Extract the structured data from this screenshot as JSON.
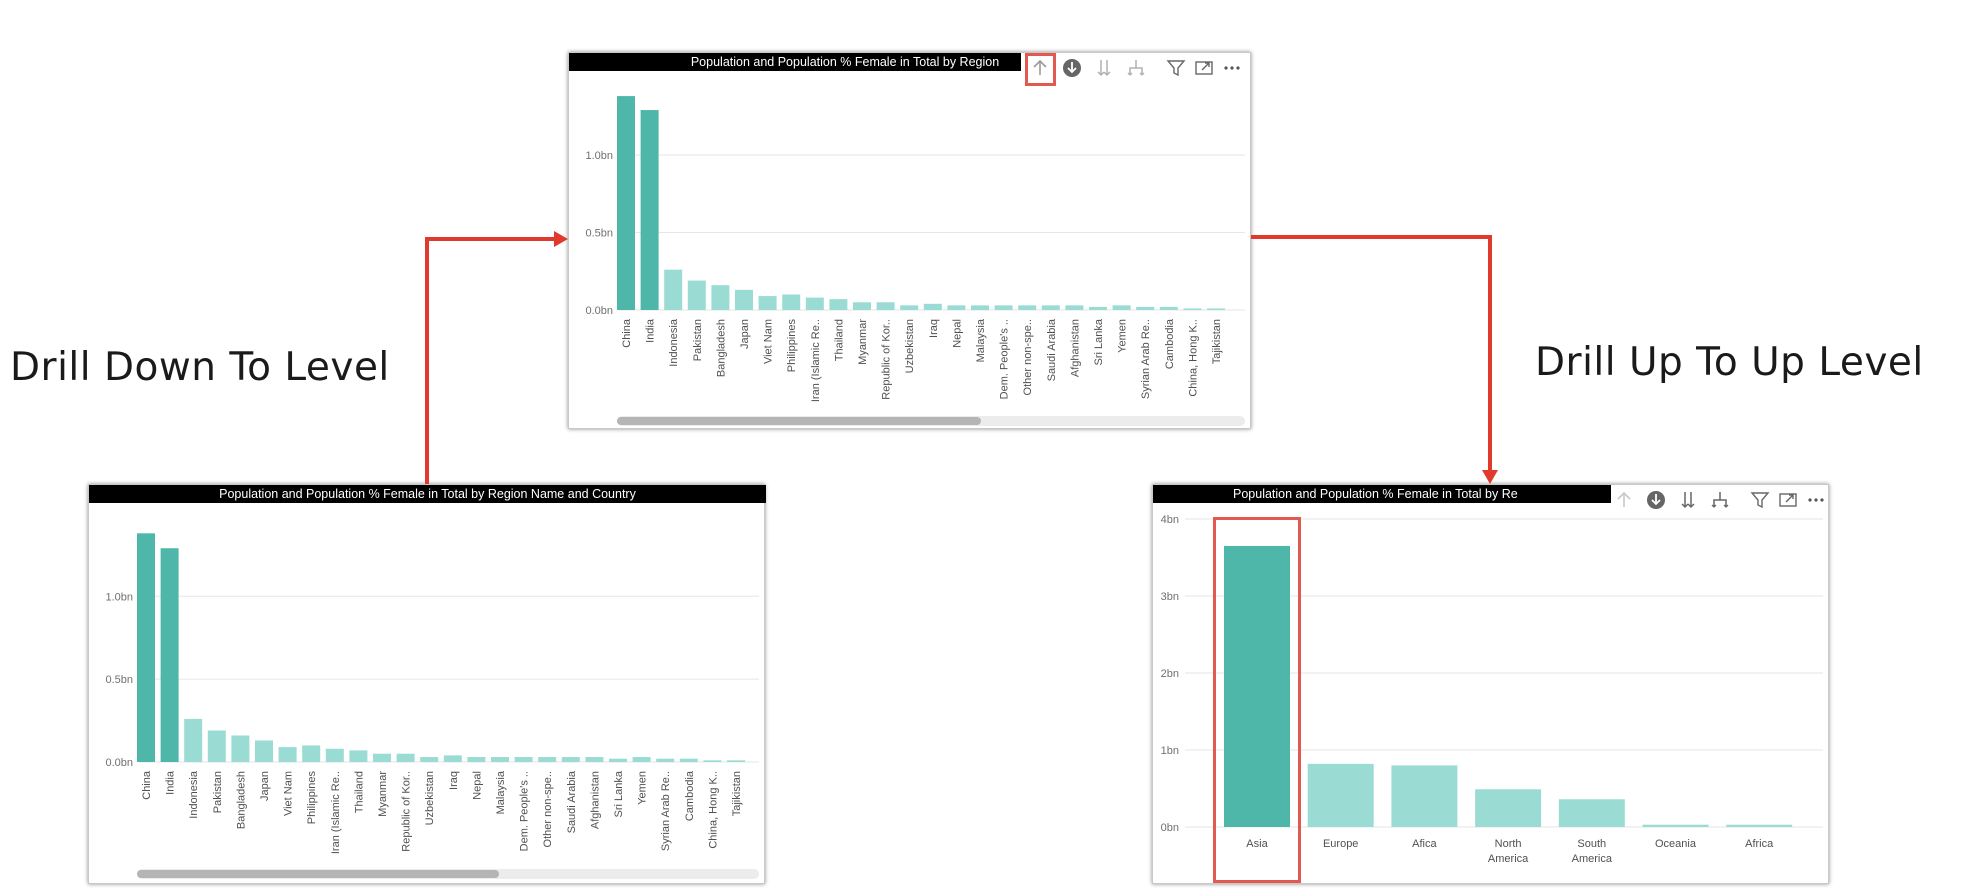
{
  "labels": {
    "drill_down": "Drill Down To Level",
    "drill_up": "Drill Up To Up Level"
  },
  "colors": {
    "bar_dark": "#4FB7A9",
    "bar_light": "#9ADCD4",
    "arrow": "#E03A2E",
    "highlight": "#E05A52"
  },
  "toolbar_icons": [
    "drill-up-icon",
    "drill-down-icon",
    "expand-next-level-icon",
    "expand-hierarchy-icon",
    "filter-icon",
    "focus-mode-icon",
    "more-options-icon"
  ],
  "panels": {
    "top": {
      "title": "Population and Population % Female in Total by Region"
    },
    "bottom_left": {
      "title": "Population and Population % Female in Total by Region Name and Country"
    },
    "bottom_right": {
      "title": "Population and Population % Female in Total by Re"
    }
  },
  "chart_data": [
    {
      "id": "top",
      "type": "bar",
      "title": "Population and Population % Female in Total by Region",
      "categories": [
        "China",
        "India",
        "Indonesia",
        "Pakistan",
        "Bangladesh",
        "Japan",
        "Viet Nam",
        "Philippines",
        "Iran (Islamic Re..",
        "Thailand",
        "Myanmar",
        "Republic of Kor..",
        "Uzbekistan",
        "Iraq",
        "Nepal",
        "Malaysia",
        "Dem. People's ..",
        "Other non-spe..",
        "Saudi Arabia",
        "Afghanistan",
        "Sri Lanka",
        "Yemen",
        "Syrian Arab Re..",
        "Cambodia",
        "China, Hong K..",
        "Tajikistan"
      ],
      "values": [
        1.38,
        1.29,
        0.26,
        0.19,
        0.16,
        0.13,
        0.09,
        0.1,
        0.08,
        0.07,
        0.05,
        0.05,
        0.03,
        0.04,
        0.03,
        0.03,
        0.03,
        0.03,
        0.03,
        0.03,
        0.02,
        0.03,
        0.02,
        0.02,
        0.01,
        0.01
      ],
      "highlight_count": 2,
      "yticks": [
        "0.0bn",
        "0.5bn",
        "1.0bn"
      ],
      "ytick_values": [
        0,
        0.5,
        1.0
      ],
      "ylim": [
        0,
        1.4
      ]
    },
    {
      "id": "bottom_left",
      "type": "bar",
      "title": "Population and Population % Female in Total by Region Name and Country",
      "categories": [
        "China",
        "India",
        "Indonesia",
        "Pakistan",
        "Bangladesh",
        "Japan",
        "Viet Nam",
        "Philippines",
        "Iran (Islamic Re..",
        "Thailand",
        "Myanmar",
        "Republic of Kor..",
        "Uzbekistan",
        "Iraq",
        "Nepal",
        "Malaysia",
        "Dem. People's ..",
        "Other non-spe..",
        "Saudi Arabia",
        "Afghanistan",
        "Sri Lanka",
        "Yemen",
        "Syrian Arab Re..",
        "Cambodia",
        "China, Hong K..",
        "Tajikistan"
      ],
      "values": [
        1.38,
        1.29,
        0.26,
        0.19,
        0.16,
        0.13,
        0.09,
        0.1,
        0.08,
        0.07,
        0.05,
        0.05,
        0.03,
        0.04,
        0.03,
        0.03,
        0.03,
        0.03,
        0.03,
        0.03,
        0.02,
        0.03,
        0.02,
        0.02,
        0.01,
        0.01
      ],
      "highlight_count": 2,
      "yticks": [
        "0.0bn",
        "0.5bn",
        "1.0bn"
      ],
      "ytick_values": [
        0,
        0.5,
        1.0
      ],
      "ylim": [
        0,
        1.4
      ]
    },
    {
      "id": "bottom_right",
      "type": "bar",
      "title": "Population and Population % Female in Total by Re",
      "categories": [
        "Asia",
        "Europe",
        "Afica",
        "North America",
        "South America",
        "Oceania",
        "Africa"
      ],
      "values": [
        3.65,
        0.82,
        0.8,
        0.49,
        0.36,
        0.03,
        0.03
      ],
      "highlight_count": 1,
      "yticks": [
        "0bn",
        "1bn",
        "2bn",
        "3bn",
        "4bn"
      ],
      "ytick_values": [
        0,
        1,
        2,
        3,
        4
      ],
      "ylim": [
        0,
        4
      ]
    }
  ]
}
